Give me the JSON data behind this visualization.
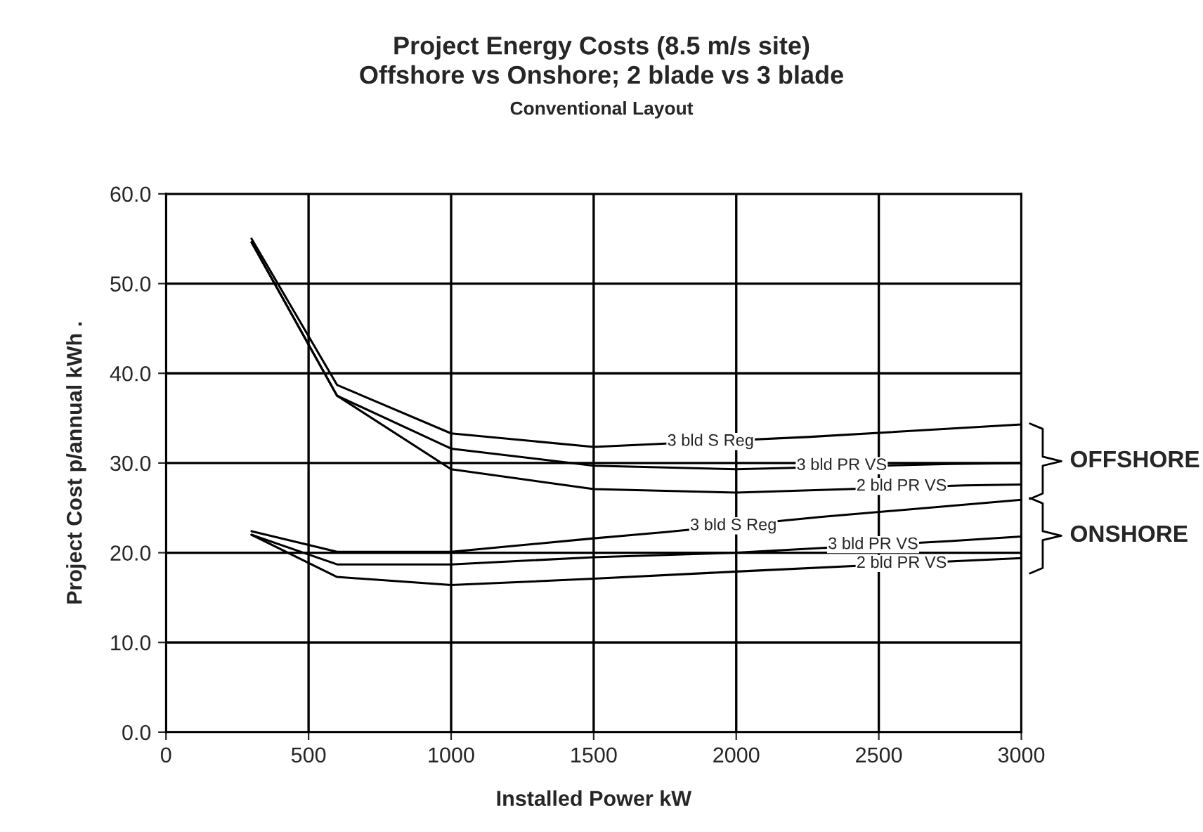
{
  "chart_data": {
    "type": "line",
    "title": "Project Energy Costs (8.5 m/s site)\nOffshore vs Onshore; 2 blade vs 3 blade",
    "subtitle": "Conventional Layout",
    "xlabel": "Installed Power kW",
    "ylabel": "Project Cost p/annual kWh .",
    "series": [
      {
        "color": "#000000",
        "x": [
          300,
          600,
          1000,
          1500,
          2250,
          3000
        ],
        "values": [
          55.0,
          38.7,
          33.3,
          31.8,
          32.9,
          34.3
        ]
      },
      {
        "color": "#000000",
        "x": [
          300,
          600,
          1000,
          1500,
          2000,
          2750,
          3000
        ],
        "values": [
          54.6,
          37.5,
          31.6,
          29.7,
          29.3,
          29.9,
          30.0
        ]
      },
      {
        "color": "#000000",
        "x": [
          300,
          600,
          1000,
          1500,
          2000,
          2800,
          3000
        ],
        "values": [
          54.6,
          37.5,
          29.3,
          27.1,
          26.7,
          27.5,
          27.6
        ]
      },
      {
        "color": "#000000",
        "x": [
          300,
          600,
          1000,
          1500,
          1750,
          2300,
          3000
        ],
        "values": [
          22.4,
          20.1,
          20.1,
          21.6,
          22.3,
          24.0,
          25.9
        ]
      },
      {
        "color": "#000000",
        "x": [
          300,
          600,
          1000,
          1500,
          2000,
          2750,
          3000
        ],
        "values": [
          22.0,
          18.7,
          18.7,
          19.5,
          20.0,
          21.3,
          21.8
        ]
      },
      {
        "color": "#000000",
        "x": [
          300,
          600,
          1000,
          1500,
          2000,
          2800,
          3000
        ],
        "values": [
          22.0,
          17.3,
          16.4,
          17.1,
          17.9,
          19.1,
          19.4
        ]
      }
    ],
    "annotations": [
      {
        "text": "3 bld S Reg",
        "x": 1910,
        "y": 32.4
      },
      {
        "text": "3 bld PR VS",
        "x": 2370,
        "y": 29.7
      },
      {
        "text": "2 bld PR VS",
        "x": 2580,
        "y": 27.4
      },
      {
        "text": "3 bld S Reg",
        "x": 1990,
        "y": 23.0
      },
      {
        "text": "3 bld PR VS",
        "x": 2480,
        "y": 20.9
      },
      {
        "text": "2 bld PR VS",
        "x": 2580,
        "y": 18.8
      },
      "OFFSHORE",
      "ONSHORE"
    ],
    "xlim": [
      0,
      3000
    ],
    "xticks": [
      0,
      500,
      1000,
      1500,
      2000,
      2500,
      3000
    ],
    "ylim": [
      0,
      60
    ],
    "yticks": [
      {
        "value": 0,
        "label": "0.0"
      },
      {
        "value": 10,
        "label": "10.0"
      },
      {
        "value": 20,
        "label": "20.0"
      },
      {
        "value": 30,
        "label": "30.0"
      },
      {
        "value": 40,
        "label": "40.0"
      },
      {
        "value": 50,
        "label": "50.0"
      },
      {
        "value": 60,
        "label": "60.0"
      }
    ],
    "grid": true,
    "marker": "none",
    "line_style": "solid"
  }
}
